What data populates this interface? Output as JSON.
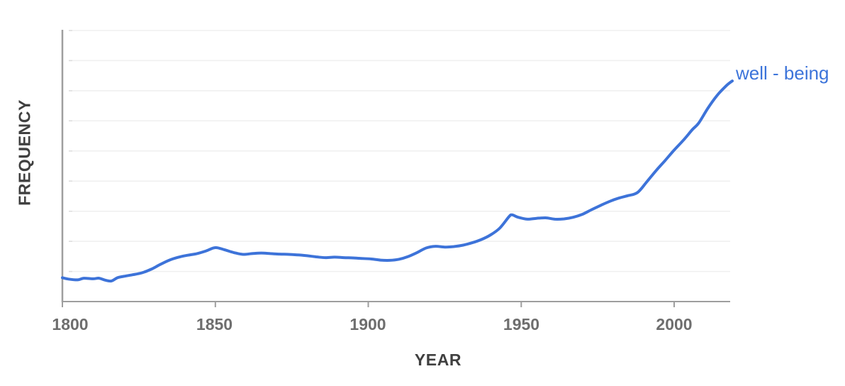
{
  "chart_data": {
    "type": "line",
    "title": "",
    "xlabel": "YEAR",
    "ylabel": "FREQUENCY",
    "legend_label": "well - being",
    "legend_position": "right end of line",
    "x_range": [
      1800,
      2019
    ],
    "x_ticks": [
      1800,
      1850,
      1900,
      1950,
      2000
    ],
    "x_tick_labels": [
      "1800",
      "1850",
      "1900",
      "1950",
      "2000"
    ],
    "y_axis_note": "no numeric tick labels; 9 light horizontal gridlines; values normalized 0-1 of plot height",
    "ylim": [
      0,
      1
    ],
    "grid": true,
    "series": [
      {
        "name": "well - being",
        "color": "#3d73d9",
        "points": [
          [
            1800,
            0.088
          ],
          [
            1802,
            0.083
          ],
          [
            1805,
            0.08
          ],
          [
            1807,
            0.086
          ],
          [
            1810,
            0.084
          ],
          [
            1812,
            0.086
          ],
          [
            1814,
            0.079
          ],
          [
            1816,
            0.076
          ],
          [
            1818,
            0.088
          ],
          [
            1820,
            0.093
          ],
          [
            1823,
            0.099
          ],
          [
            1826,
            0.106
          ],
          [
            1829,
            0.119
          ],
          [
            1832,
            0.137
          ],
          [
            1835,
            0.153
          ],
          [
            1838,
            0.164
          ],
          [
            1841,
            0.171
          ],
          [
            1844,
            0.177
          ],
          [
            1847,
            0.187
          ],
          [
            1850,
            0.199
          ],
          [
            1853,
            0.191
          ],
          [
            1856,
            0.181
          ],
          [
            1859,
            0.174
          ],
          [
            1862,
            0.177
          ],
          [
            1865,
            0.179
          ],
          [
            1868,
            0.177
          ],
          [
            1871,
            0.175
          ],
          [
            1874,
            0.174
          ],
          [
            1877,
            0.172
          ],
          [
            1880,
            0.169
          ],
          [
            1883,
            0.165
          ],
          [
            1886,
            0.162
          ],
          [
            1889,
            0.164
          ],
          [
            1892,
            0.162
          ],
          [
            1895,
            0.161
          ],
          [
            1898,
            0.159
          ],
          [
            1901,
            0.157
          ],
          [
            1904,
            0.153
          ],
          [
            1907,
            0.152
          ],
          [
            1910,
            0.156
          ],
          [
            1913,
            0.166
          ],
          [
            1916,
            0.181
          ],
          [
            1919,
            0.198
          ],
          [
            1922,
            0.204
          ],
          [
            1925,
            0.201
          ],
          [
            1928,
            0.203
          ],
          [
            1931,
            0.208
          ],
          [
            1934,
            0.217
          ],
          [
            1937,
            0.229
          ],
          [
            1940,
            0.246
          ],
          [
            1943,
            0.271
          ],
          [
            1946,
            0.313
          ],
          [
            1947,
            0.32
          ],
          [
            1949,
            0.311
          ],
          [
            1952,
            0.304
          ],
          [
            1955,
            0.307
          ],
          [
            1958,
            0.309
          ],
          [
            1961,
            0.304
          ],
          [
            1964,
            0.305
          ],
          [
            1967,
            0.311
          ],
          [
            1970,
            0.322
          ],
          [
            1973,
            0.339
          ],
          [
            1976,
            0.355
          ],
          [
            1979,
            0.37
          ],
          [
            1982,
            0.382
          ],
          [
            1985,
            0.391
          ],
          [
            1988,
            0.402
          ],
          [
            1991,
            0.441
          ],
          [
            1994,
            0.482
          ],
          [
            1997,
            0.52
          ],
          [
            2000,
            0.559
          ],
          [
            2003,
            0.595
          ],
          [
            2006,
            0.635
          ],
          [
            2008,
            0.658
          ],
          [
            2011,
            0.713
          ],
          [
            2014,
            0.76
          ],
          [
            2017,
            0.796
          ],
          [
            2019,
            0.814
          ]
        ]
      }
    ]
  },
  "colors": {
    "line": "#3d73d9",
    "legend_text": "#3c74da",
    "axis": "#9e9e9e",
    "gridline": "#efefef",
    "gridline_cap": "#dcdcdc",
    "axis_title": "#404040",
    "tick_label": "#6e6e6e",
    "background": "#ffffff"
  }
}
